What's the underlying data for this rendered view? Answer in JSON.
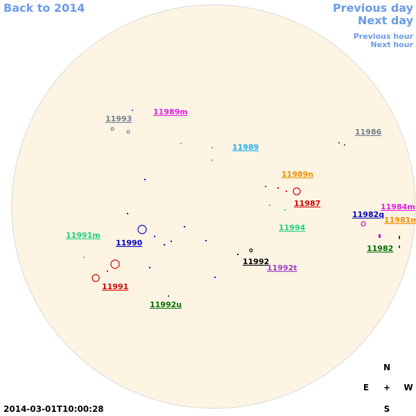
{
  "nav": {
    "back": "Back to 2014",
    "previous_day": "Previous day",
    "next_day": "Next day",
    "previous_hour": "Previous hour",
    "next_hour": "Next hour"
  },
  "regions": [
    "11993",
    "11989m",
    "11989",
    "11986",
    "11989n",
    "11987",
    "11982q",
    "11984m",
    "11981m",
    "11994",
    "11991m",
    "11990",
    "11982",
    "11992",
    "11992t",
    "11991",
    "11992u"
  ],
  "compass": {
    "north": "N",
    "east": "E",
    "center": "+",
    "west": "W",
    "south": "S"
  },
  "timestamp": "2014-03-01T10:00:28"
}
